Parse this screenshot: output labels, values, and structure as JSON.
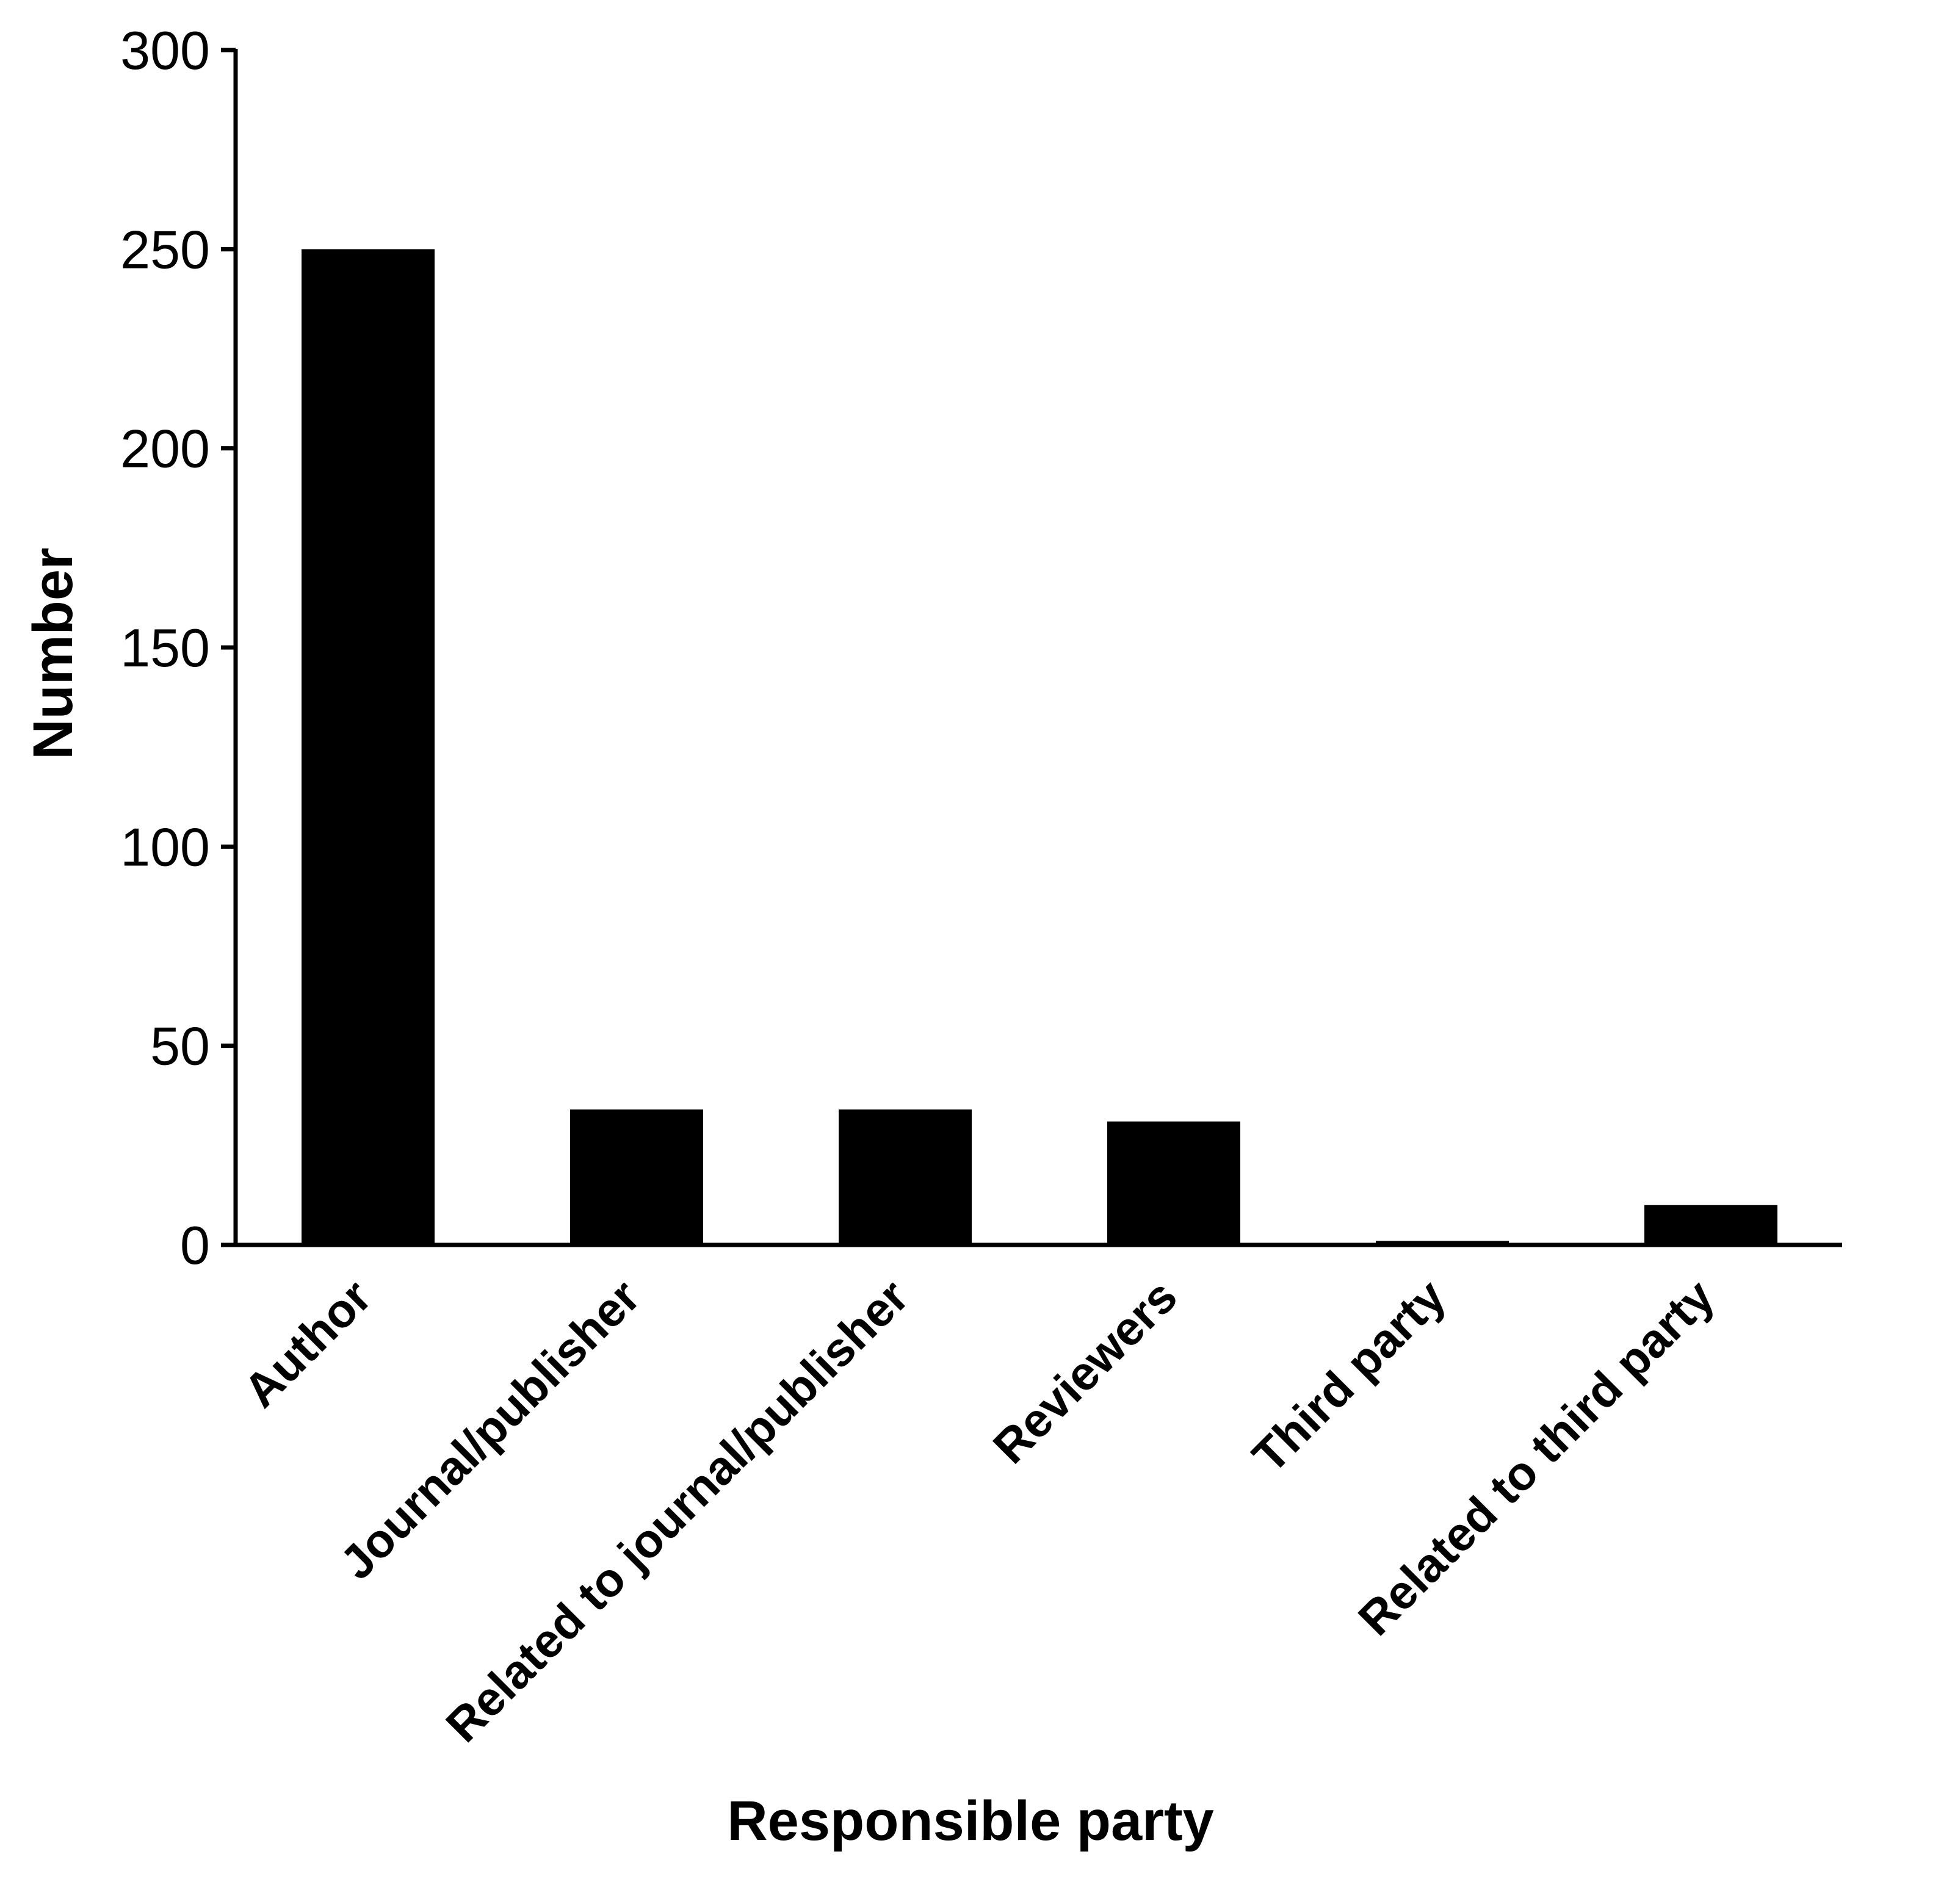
{
  "chart_data": {
    "type": "bar",
    "categories": [
      "Author",
      "Journal/publisher",
      "Related to journal/publisher",
      "Reviewers",
      "Third party",
      "Related to third party"
    ],
    "values": [
      250,
      34,
      34,
      31,
      1,
      10
    ],
    "title": "",
    "xlabel": "Responsible party",
    "ylabel": "Number",
    "ylim": [
      0,
      300
    ],
    "yticks": [
      0,
      50,
      100,
      150,
      200,
      250,
      300
    ],
    "grid": false,
    "bar_color": "#000000",
    "axis_color": "#000000"
  }
}
